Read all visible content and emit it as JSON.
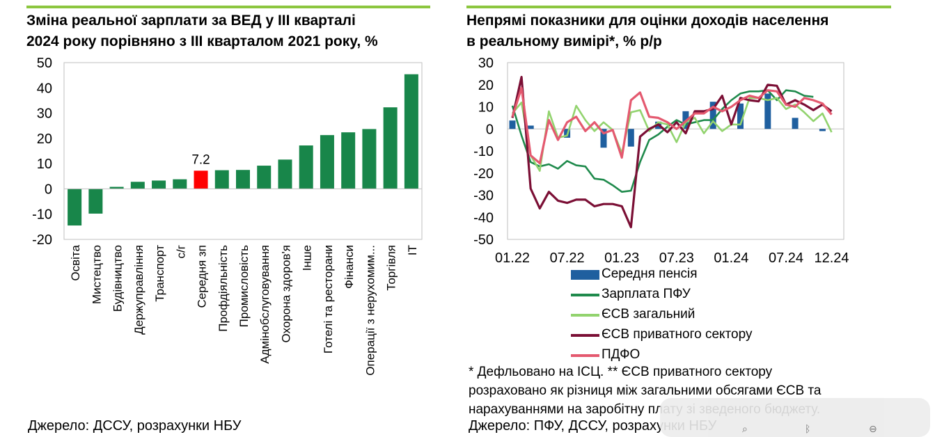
{
  "left": {
    "title_line1": "Зміна реальної зарплати за ВЕД у III кварталі",
    "title_line2": "2024 року порівняно з III кварталом 2021 року, %",
    "source": "Джерело: ДССУ, розрахунки НБУ"
  },
  "right": {
    "title_line1": "Непрямі показники для оцінки доходів населення",
    "title_line2": "в реальному вимірі*, % р/р",
    "note_line1": "* Дефльовано на ІСЦ. ** ЄСВ приватного сектору",
    "note_line2": "розраховано як різниця між загальними обсягами ЄСВ та",
    "note_line3": "нарахуваннями на заробітну плату зі зведеного бюджету.",
    "source": "Джерело: ПФУ, ДССУ, розрахунки НБУ"
  },
  "colors": {
    "bar_green": "#18864a",
    "bar_highlight": "#ff0000",
    "pension": "#1f5f9f",
    "salary_pfu": "#1f8a4c",
    "esv_total": "#92d36e",
    "esv_private": "#7b0f35",
    "pdfo": "#e4596f",
    "accent_line": "#8cc63f"
  },
  "chart_data": [
    {
      "type": "bar",
      "title": "Зміна реальної зарплати за ВЕД у III кварталі 2024 року порівняно з III кварталом 2021 року, %",
      "categories": [
        "Освіта",
        "Мистецтво",
        "Будівництво",
        "Держуправління",
        "Транспорт",
        "с/г",
        "Середня зп",
        "Профдіяльність",
        "Промисловість",
        "Адмінобслуговування",
        "Охорона здоров'я",
        "Інше",
        "Готелі та ресторани",
        "Фінанси",
        "Операції з нерухомим...",
        "Торгівля",
        "IT"
      ],
      "values": [
        -14.5,
        -9.8,
        0.8,
        2.8,
        3.3,
        3.8,
        7.2,
        7.4,
        7.5,
        9.2,
        11.6,
        17.2,
        21.3,
        22.4,
        23.7,
        32.3,
        45.4
      ],
      "highlight_index": 6,
      "highlight_label": "7.2",
      "ylim": [
        -20,
        50
      ],
      "yticks": [
        "-20",
        "-10",
        "0",
        "10",
        "20",
        "30",
        "40",
        "50"
      ],
      "xlabel": "",
      "ylabel": ""
    },
    {
      "type": "line",
      "title": "Непрямі показники для оцінки доходів населення в реальному вимірі*, % р/р",
      "x_start": "01.22",
      "n_points": 36,
      "xticks": [
        "01.22",
        "07.22",
        "01.23",
        "07.23",
        "01.24",
        "07.24",
        "12.24"
      ],
      "ylim": [
        -50,
        30
      ],
      "yticks": [
        "-50",
        "-40",
        "-30",
        "-20",
        "-10",
        "0",
        "10",
        "20",
        "30"
      ],
      "series": [
        {
          "name": "Середня пенсія",
          "kind": "bar",
          "values": [
            3.8,
            null,
            1.5,
            null,
            null,
            null,
            -4.0,
            null,
            null,
            null,
            -8.5,
            null,
            null,
            -8.0,
            null,
            null,
            3.3,
            null,
            null,
            8.0,
            null,
            null,
            12.3,
            null,
            null,
            11.5,
            null,
            null,
            16.0,
            null,
            null,
            5.0,
            null,
            null,
            -1.0,
            null
          ]
        },
        {
          "name": "Зарплата ПФУ",
          "kind": "line",
          "values": [
            10.5,
            -3,
            -15,
            -17,
            -16,
            -18,
            -14.5,
            -16.5,
            -17,
            -22.5,
            -23,
            -25.5,
            -28.5,
            -28,
            -15,
            -5,
            -2.5,
            1,
            4,
            2,
            3,
            4,
            4,
            9,
            13,
            16,
            17,
            17,
            17.5,
            13,
            17.5,
            17,
            15,
            14.5,
            null,
            null
          ]
        },
        {
          "name": "ЄСВ загальний",
          "kind": "line",
          "values": [
            7,
            12,
            -12,
            -19,
            8,
            -4,
            -3,
            10.5,
            4,
            -1,
            3,
            -0.5,
            -11,
            7.5,
            8.5,
            -1,
            3,
            2,
            -6,
            3,
            5,
            -2,
            3.5,
            -1,
            2,
            2,
            14,
            14,
            13,
            14,
            9,
            11,
            7.5,
            3.5,
            7,
            -1.5
          ]
        },
        {
          "name": "ЄСВ приватного сектору",
          "kind": "line",
          "values": [
            5,
            23.5,
            -27,
            -36,
            -28.5,
            -32.5,
            -33.5,
            -32,
            -32,
            -35,
            -34,
            -34,
            -35,
            -44.5,
            -3.5,
            0,
            2,
            -1.5,
            3,
            -2,
            8,
            8,
            9,
            15,
            2,
            14,
            13,
            12.5,
            20,
            19.5,
            11,
            13,
            11,
            8.5,
            11,
            8
          ]
        },
        {
          "name": "ПДФО",
          "kind": "line",
          "values": [
            5.5,
            18.5,
            -12,
            -15.5,
            4,
            -5,
            3,
            5.5,
            -1,
            3,
            -2,
            -0.5,
            -13,
            13,
            16.5,
            5.5,
            5,
            3,
            0,
            3.5,
            7,
            7,
            10,
            8,
            10,
            13,
            15,
            14,
            17.5,
            17,
            11,
            10,
            14,
            13,
            11.5,
            6.5
          ]
        }
      ]
    }
  ]
}
